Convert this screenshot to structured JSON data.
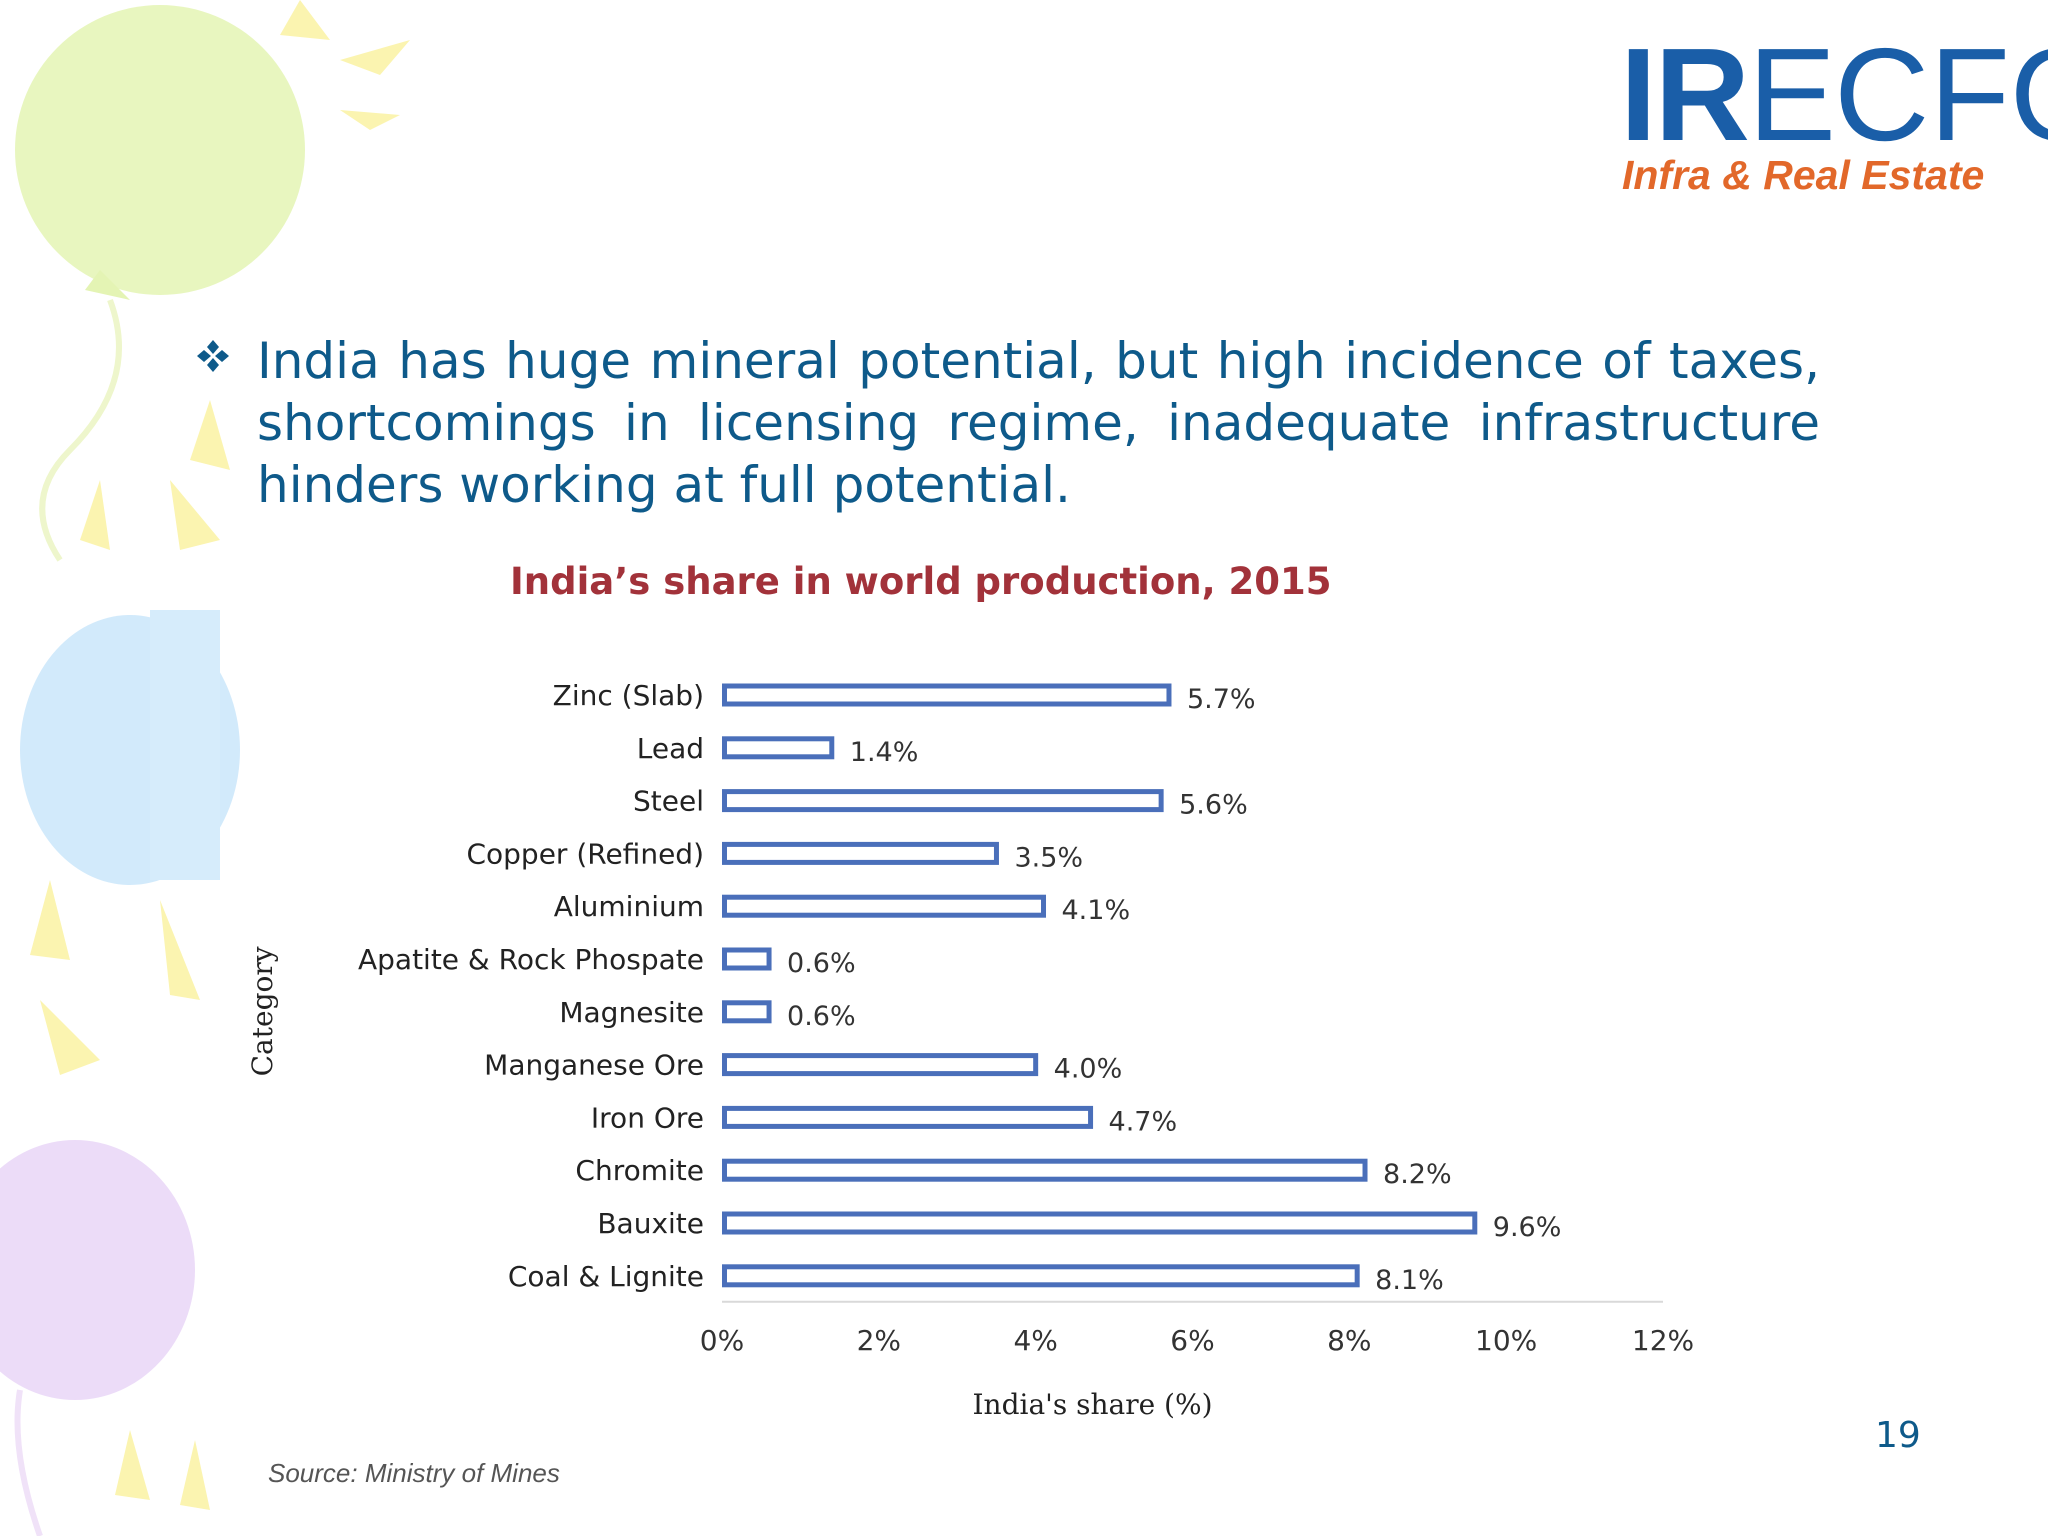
{
  "logo": {
    "part_ir": "IR",
    "part_e": "E",
    "part_cfo": "CFO",
    "tagline": "Infra & Real Estate"
  },
  "bullet": {
    "icon": "diamond-bullet-icon",
    "text": "India has huge mineral potential, but high incidence of taxes, shortcomings in licensing regime, inadequate infrastructure hinders working at full potential."
  },
  "chart_data": {
    "type": "bar",
    "orientation": "horizontal",
    "title": "India’s share in world production, 2015",
    "xlabel": "India's share (%)",
    "ylabel": "Category",
    "categories": [
      "Zinc (Slab)",
      "Lead",
      "Steel",
      "Copper (Refined)",
      "Aluminium",
      "Apatite & Rock Phospate",
      "Magnesite",
      "Manganese Ore",
      "Iron Ore",
      "Chromite",
      "Bauxite",
      "Coal & Lignite"
    ],
    "values": [
      5.7,
      1.4,
      5.6,
      3.5,
      4.1,
      0.6,
      0.6,
      4.0,
      4.7,
      8.2,
      9.6,
      8.1
    ],
    "value_labels": [
      "5.7%",
      "1.4%",
      "5.6%",
      "3.5%",
      "4.1%",
      "0.6%",
      "0.6%",
      "4.0%",
      "4.7%",
      "8.2%",
      "9.6%",
      "8.1%"
    ],
    "xlim": [
      0,
      12
    ],
    "x_ticks": [
      0,
      2,
      4,
      6,
      8,
      10,
      12
    ],
    "x_tick_labels": [
      "0%",
      "2%",
      "4%",
      "6%",
      "8%",
      "10%",
      "12%"
    ],
    "grid": false,
    "legend": "none",
    "bar_color": "#4a6fba"
  },
  "source": "Source: Ministry of Mines",
  "page_number": "19",
  "colors": {
    "text_blue": "#0e5a8a",
    "title_red": "#a2323a",
    "logo_blue": "#1a5ea8",
    "logo_orange": "#e2682a"
  }
}
